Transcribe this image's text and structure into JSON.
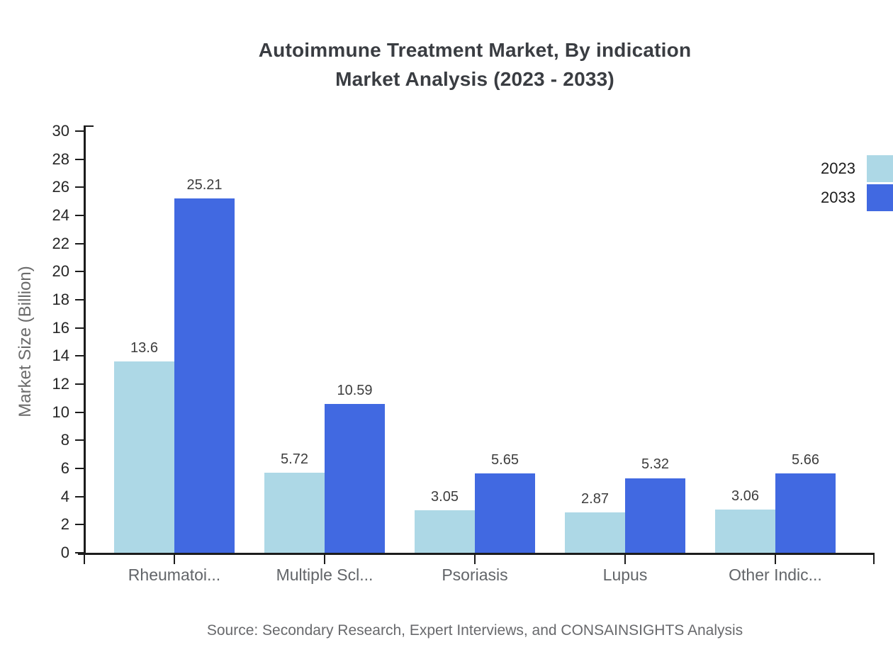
{
  "page": {
    "title_line1": "Autoimmune Treatment Market, By indication",
    "title_line2": "Market Analysis (2023 - 2033)"
  },
  "chart_data": {
    "type": "bar",
    "title": "Autoimmune Treatment Market, By indication Market Analysis (2023 - 2033)",
    "categories": [
      "Rheumatoi...",
      "Multiple Scl...",
      "Psoriasis",
      "Lupus",
      "Other Indic..."
    ],
    "series": [
      {
        "name": "2023",
        "color": "#ADD8E6",
        "values": [
          13.6,
          5.72,
          3.05,
          2.87,
          3.06
        ]
      },
      {
        "name": "2033",
        "color": "#4169E1",
        "values": [
          25.21,
          10.59,
          5.65,
          5.32,
          5.66
        ]
      }
    ],
    "xlabel": "",
    "ylabel": "Market Size (Billion)",
    "ylim": [
      0,
      30
    ],
    "ytick_step": 2,
    "grid": false,
    "legend_position": "top-right",
    "axis_color": "#1c1c1c",
    "source_note": "Source: Secondary Research, Expert Interviews, and CONSAINSIGHTS Analysis"
  }
}
